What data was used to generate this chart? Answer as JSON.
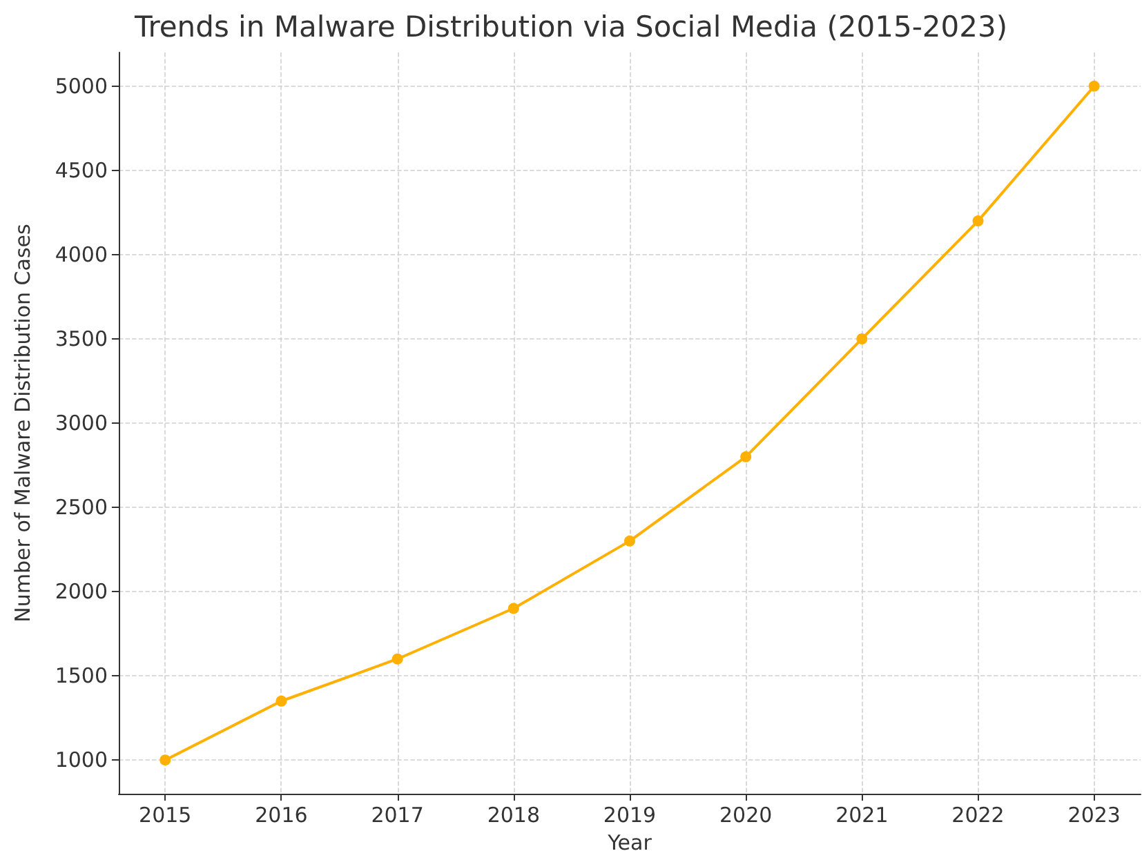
{
  "chart_data": {
    "type": "line",
    "title": "Trends in Malware Distribution via Social Media (2015-2023)",
    "xlabel": "Year",
    "ylabel": "Number of Malware Distribution Cases",
    "x": [
      2015,
      2016,
      2017,
      2018,
      2019,
      2020,
      2021,
      2022,
      2023
    ],
    "series": [
      {
        "color": "#ffb000",
        "values": [
          1000,
          1350,
          1600,
          1900,
          2300,
          2800,
          3500,
          4200,
          5000
        ]
      }
    ],
    "xlim": [
      2014.6,
      2023.4
    ],
    "xticks": [
      2015,
      2016,
      2017,
      2018,
      2019,
      2020,
      2021,
      2022,
      2023
    ],
    "ylim": [
      800,
      5200
    ],
    "yticks": [
      1000,
      1500,
      2000,
      2500,
      3000,
      3500,
      4000,
      4500,
      5000
    ],
    "grid": true,
    "marker": "circle",
    "line_style": "solid"
  }
}
